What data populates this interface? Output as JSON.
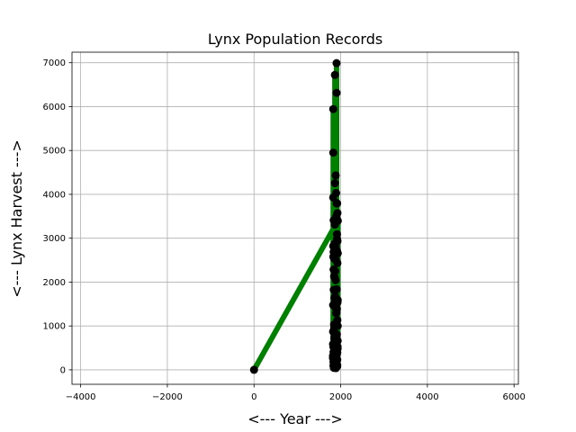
{
  "chart_data": {
    "type": "line",
    "title": "Lynx Population Records",
    "xlabel": "<--- Year --->",
    "ylabel": "<--- Lynx Harvest --->",
    "xlim": [
      -4200,
      6100
    ],
    "ylim": [
      -330,
      7240
    ],
    "xticks": [
      -4000,
      -2000,
      0,
      2000,
      4000,
      6000
    ],
    "xtick_labels": [
      "−4000",
      "−2000",
      "0",
      "2000",
      "4000",
      "6000"
    ],
    "yticks": [
      0,
      1000,
      2000,
      3000,
      4000,
      5000,
      6000,
      7000
    ],
    "ytick_labels": [
      "0",
      "1000",
      "2000",
      "3000",
      "4000",
      "5000",
      "6000",
      "7000"
    ],
    "grid": true,
    "line_color": "#008000",
    "marker_color": "#000000",
    "series": [
      {
        "x": [
          1821,
          1822,
          1823,
          1824,
          1825,
          1826,
          1827,
          1828,
          1829,
          1830,
          1831,
          1832,
          1833,
          1834,
          1835,
          1836,
          1837,
          1838,
          1839,
          1840,
          1841,
          1842,
          1843,
          1844,
          1845,
          1846,
          1847,
          1848,
          1849,
          1850,
          1851,
          1852,
          1853,
          1854,
          1855,
          1856,
          1857,
          1858,
          1859,
          1860,
          1861,
          1862,
          1863,
          1864,
          1865,
          1866,
          1867,
          1868,
          1869,
          1870,
          1871,
          1872,
          1873,
          1874,
          1875,
          1876,
          1877,
          1878,
          1879,
          1880,
          1881,
          1882,
          1883,
          1884,
          1885,
          1886,
          1887,
          1888,
          1889,
          1890,
          1891,
          1892,
          1893,
          1894,
          1895,
          1896,
          1897,
          1898,
          1899,
          1900,
          1901,
          1902,
          1903,
          1904,
          1905,
          1906,
          1907,
          1908,
          1909,
          1910,
          1911,
          1912,
          1913,
          1914,
          1915,
          1916,
          1917,
          1918,
          1919,
          1920,
          1921,
          1922,
          1923,
          1924,
          1925,
          1926,
          1927,
          1928,
          1929,
          1930,
          1931,
          1932,
          1933,
          1934,
          0
        ],
        "y": [
          269,
          321,
          585,
          871,
          1475,
          2821,
          3928,
          5943,
          4950,
          2577,
          523,
          98,
          184,
          279,
          409,
          2285,
          2685,
          3409,
          1824,
          409,
          151,
          45,
          68,
          213,
          546,
          1033,
          2129,
          2536,
          957,
          361,
          377,
          225,
          360,
          731,
          1638,
          2725,
          2871,
          2119,
          684,
          299,
          236,
          245,
          552,
          1623,
          3311,
          6721,
          4254,
          687,
          255,
          473,
          358,
          784,
          1594,
          1676,
          2251,
          1426,
          756,
          299,
          201,
          229,
          469,
          736,
          2042,
          2811,
          4431,
          2511,
          389,
          73,
          39,
          49,
          59,
          188,
          377,
          1292,
          4031,
          3495,
          587,
          105,
          153,
          387,
          758,
          1307,
          3465,
          6991,
          6313,
          3794,
          1836,
          345,
          382,
          808,
          1388,
          2713,
          3800,
          3091,
          2985,
          3790,
          674,
          81,
          80,
          108,
          229,
          399,
          1132,
          2432,
          3574,
          2935,
          1537,
          529,
          485,
          662,
          1000,
          1590,
          2657,
          3396,
          0
        ]
      }
    ]
  }
}
